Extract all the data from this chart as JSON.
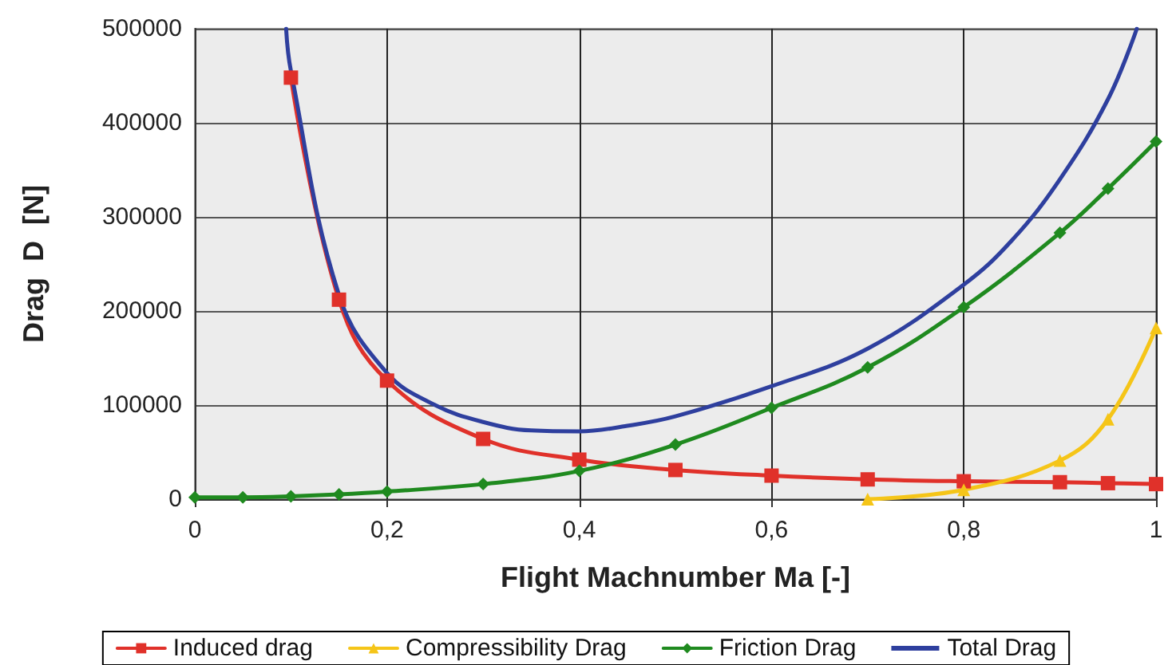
{
  "chart_data": {
    "type": "line",
    "xlabel": "Flight Machnumber Ma [-]",
    "ylabel": "Drag  D  [N]",
    "xlim": [
      0,
      1
    ],
    "xticks": [
      {
        "value": 0,
        "label": "0"
      },
      {
        "value": 0.2,
        "label": "0,2"
      },
      {
        "value": 0.4,
        "label": "0,4"
      },
      {
        "value": 0.6,
        "label": "0,6"
      },
      {
        "value": 0.8,
        "label": "0,8"
      },
      {
        "value": 1,
        "label": "1"
      }
    ],
    "ylim": [
      0,
      500000
    ],
    "yticks": [
      0,
      100000,
      200000,
      300000,
      400000,
      500000
    ],
    "grid": true,
    "legend": "bottom",
    "line_style": "solid",
    "series": [
      {
        "name": "Induced drag",
        "color": "#e0312a",
        "marker": "square",
        "x": [
          0.1,
          0.15,
          0.2,
          0.3,
          0.4,
          0.5,
          0.6,
          0.7,
          0.8,
          0.9,
          0.95,
          1.0
        ],
        "values": [
          448000,
          212000,
          126000,
          64000,
          42000,
          31000,
          25000,
          21000,
          19000,
          18000,
          17000,
          16000
        ]
      },
      {
        "name": "Compressibility Drag",
        "color": "#f5c518",
        "marker": "triangle",
        "x": [
          0.7,
          0.8,
          0.9,
          0.95,
          1.0
        ],
        "values": [
          0,
          10000,
          41000,
          85000,
          182000
        ]
      },
      {
        "name": "Friction Drag",
        "color": "#1f8a1f",
        "marker": "diamond",
        "x": [
          0,
          0.05,
          0.1,
          0.15,
          0.2,
          0.3,
          0.4,
          0.5,
          0.6,
          0.7,
          0.8,
          0.9,
          0.95,
          1.0
        ],
        "values": [
          2000,
          2000,
          3000,
          5000,
          8000,
          16000,
          30000,
          58000,
          97000,
          140000,
          204000,
          283000,
          330000,
          380000
        ]
      },
      {
        "name": "Total Drag",
        "color": "#2e3f9e",
        "marker": "none",
        "x": [
          0.095,
          0.1,
          0.15,
          0.2,
          0.25,
          0.3,
          0.35,
          0.4,
          0.45,
          0.5,
          0.6,
          0.7,
          0.8,
          0.85,
          0.9,
          0.95,
          0.98
        ],
        "values": [
          500000,
          455000,
          217000,
          134000,
          100000,
          82000,
          73000,
          72000,
          78000,
          88000,
          120000,
          160000,
          228000,
          275000,
          340000,
          425000,
          500000
        ]
      }
    ]
  }
}
